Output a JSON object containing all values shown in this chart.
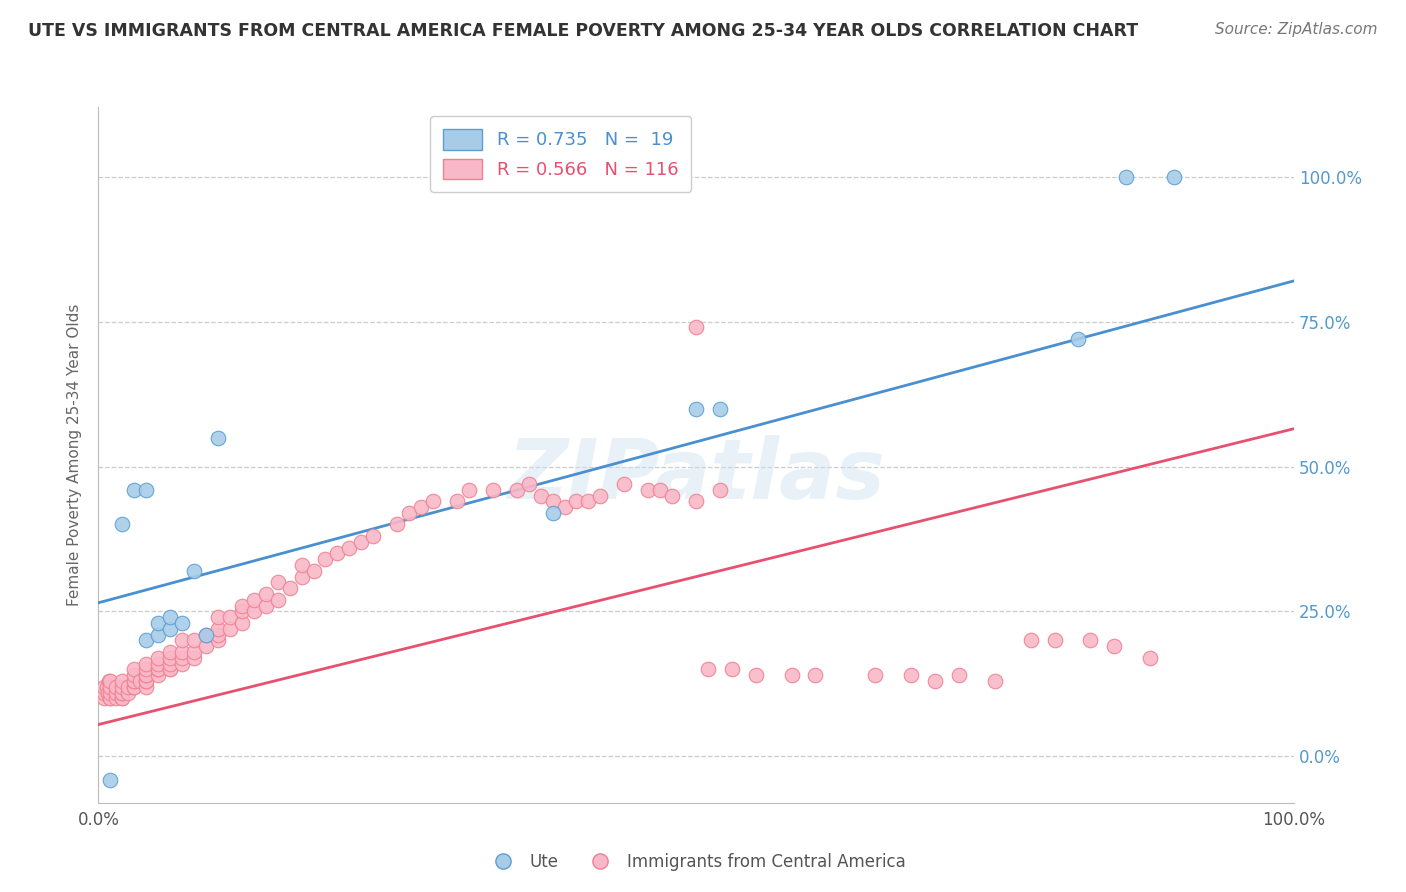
{
  "title": "UTE VS IMMIGRANTS FROM CENTRAL AMERICA FEMALE POVERTY AMONG 25-34 YEAR OLDS CORRELATION CHART",
  "source": "Source: ZipAtlas.com",
  "ylabel": "Female Poverty Among 25-34 Year Olds",
  "xlabel": "",
  "xlim": [
    0.0,
    1.0
  ],
  "ylim": [
    -0.08,
    1.12
  ],
  "ytick_values": [
    0.0,
    0.25,
    0.5,
    0.75,
    1.0
  ],
  "ytick_labels": [
    "0.0%",
    "25.0%",
    "50.0%",
    "75.0%",
    "100.0%"
  ],
  "blue_R": 0.735,
  "blue_N": 19,
  "pink_R": 0.566,
  "pink_N": 116,
  "blue_color": "#a8cce8",
  "pink_color": "#f9b8c8",
  "blue_edge_color": "#5a9fd4",
  "pink_edge_color": "#f08090",
  "blue_line_color": "#4a90d0",
  "pink_line_color": "#e85070",
  "background_color": "#ffffff",
  "grid_color": "#cccccc",
  "legend_label_blue": "Ute",
  "legend_label_pink": "Immigrants from Central America",
  "right_tick_color": "#5599cc",
  "title_color": "#333333",
  "watermark": "ZIPatlas",
  "blue_line_x0": 0.0,
  "blue_line_y0": 0.265,
  "blue_line_x1": 1.0,
  "blue_line_y1": 0.82,
  "pink_line_x0": 0.0,
  "pink_line_y0": 0.055,
  "pink_line_x1": 1.0,
  "pink_line_y1": 0.565,
  "blue_scatter_x": [
    0.01,
    0.02,
    0.03,
    0.04,
    0.04,
    0.05,
    0.05,
    0.06,
    0.06,
    0.07,
    0.08,
    0.09,
    0.1,
    0.38,
    0.5,
    0.52,
    0.82,
    0.86,
    0.9
  ],
  "blue_scatter_y": [
    -0.04,
    0.4,
    0.46,
    0.46,
    0.2,
    0.21,
    0.23,
    0.22,
    0.24,
    0.23,
    0.32,
    0.21,
    0.55,
    0.42,
    0.6,
    0.6,
    0.72,
    1.0,
    1.0
  ],
  "pink_scatter_x": [
    0.005,
    0.005,
    0.005,
    0.007,
    0.008,
    0.009,
    0.01,
    0.01,
    0.01,
    0.01,
    0.01,
    0.015,
    0.015,
    0.015,
    0.02,
    0.02,
    0.02,
    0.02,
    0.02,
    0.02,
    0.025,
    0.025,
    0.03,
    0.03,
    0.03,
    0.03,
    0.03,
    0.03,
    0.035,
    0.04,
    0.04,
    0.04,
    0.04,
    0.04,
    0.04,
    0.04,
    0.05,
    0.05,
    0.05,
    0.05,
    0.05,
    0.06,
    0.06,
    0.06,
    0.06,
    0.06,
    0.07,
    0.07,
    0.07,
    0.07,
    0.08,
    0.08,
    0.08,
    0.09,
    0.09,
    0.1,
    0.1,
    0.1,
    0.1,
    0.11,
    0.11,
    0.12,
    0.12,
    0.12,
    0.13,
    0.13,
    0.14,
    0.14,
    0.15,
    0.15,
    0.16,
    0.17,
    0.17,
    0.18,
    0.19,
    0.2,
    0.21,
    0.22,
    0.23,
    0.25,
    0.26,
    0.27,
    0.28,
    0.3,
    0.31,
    0.33,
    0.35,
    0.36,
    0.37,
    0.38,
    0.39,
    0.4,
    0.41,
    0.42,
    0.44,
    0.46,
    0.47,
    0.48,
    0.5,
    0.52,
    0.5,
    0.51,
    0.53,
    0.55,
    0.58,
    0.6,
    0.65,
    0.68,
    0.7,
    0.72,
    0.75,
    0.78,
    0.8,
    0.83,
    0.85,
    0.88
  ],
  "pink_scatter_y": [
    0.1,
    0.11,
    0.12,
    0.12,
    0.11,
    0.13,
    0.1,
    0.1,
    0.11,
    0.12,
    0.13,
    0.1,
    0.11,
    0.12,
    0.1,
    0.1,
    0.11,
    0.11,
    0.12,
    0.13,
    0.11,
    0.12,
    0.12,
    0.12,
    0.13,
    0.13,
    0.14,
    0.15,
    0.13,
    0.12,
    0.13,
    0.13,
    0.14,
    0.14,
    0.15,
    0.16,
    0.14,
    0.15,
    0.15,
    0.16,
    0.17,
    0.15,
    0.15,
    0.16,
    0.17,
    0.18,
    0.16,
    0.17,
    0.18,
    0.2,
    0.17,
    0.18,
    0.2,
    0.19,
    0.21,
    0.2,
    0.21,
    0.22,
    0.24,
    0.22,
    0.24,
    0.23,
    0.25,
    0.26,
    0.25,
    0.27,
    0.26,
    0.28,
    0.27,
    0.3,
    0.29,
    0.31,
    0.33,
    0.32,
    0.34,
    0.35,
    0.36,
    0.37,
    0.38,
    0.4,
    0.42,
    0.43,
    0.44,
    0.44,
    0.46,
    0.46,
    0.46,
    0.47,
    0.45,
    0.44,
    0.43,
    0.44,
    0.44,
    0.45,
    0.47,
    0.46,
    0.46,
    0.45,
    0.44,
    0.46,
    0.74,
    0.15,
    0.15,
    0.14,
    0.14,
    0.14,
    0.14,
    0.14,
    0.13,
    0.14,
    0.13,
    0.2,
    0.2,
    0.2,
    0.19,
    0.17
  ]
}
